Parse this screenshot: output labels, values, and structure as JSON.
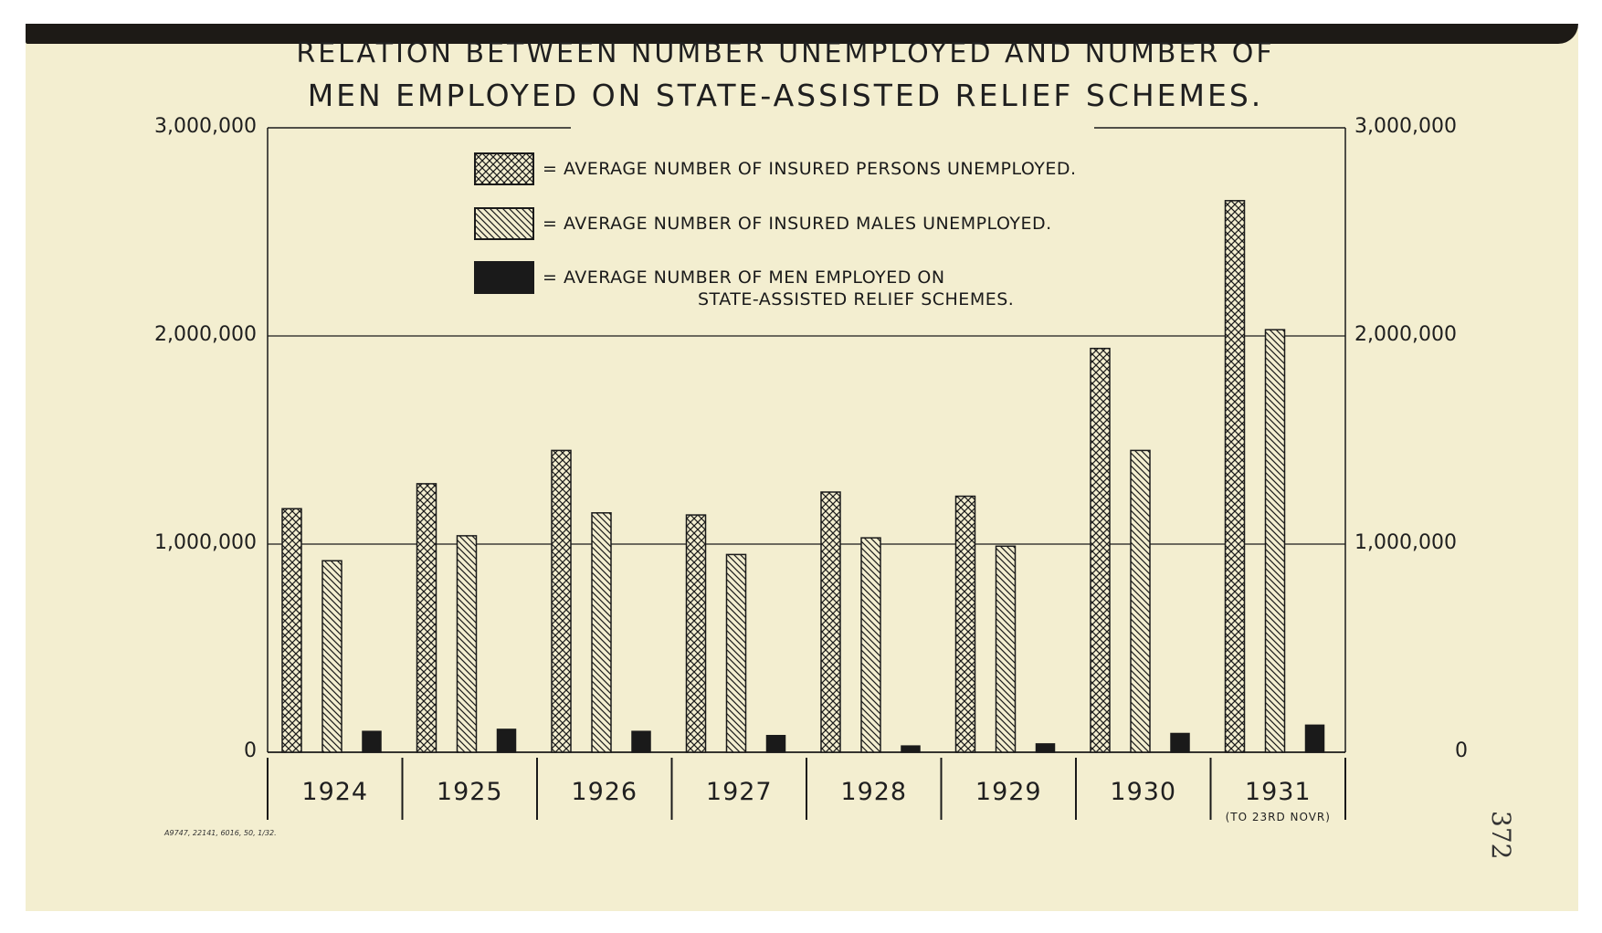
{
  "title": {
    "line1": "RELATION  BETWEEN  NUMBER  UNEMPLOYED  AND  NUMBER  OF",
    "line2": "MEN  EMPLOYED  ON  STATE-ASSISTED  RELIEF  SCHEMES."
  },
  "legend": [
    {
      "pattern": "crosshatch",
      "text": "= AVERAGE  NUMBER  OF  INSURED  PERSONS  UNEMPLOYED."
    },
    {
      "pattern": "diagonal",
      "text": "= AVERAGE  NUMBER  OF  INSURED  MALES  UNEMPLOYED."
    },
    {
      "pattern": "solid",
      "text": "= AVERAGE  NUMBER  OF  MEN  EMPLOYED  ON",
      "text2": "STATE-ASSISTED  RELIEF  SCHEMES."
    }
  ],
  "axis": {
    "left_ticks": [
      "0",
      "1,000,000",
      "2,000,000",
      "3,000,000"
    ],
    "right_ticks": [
      "0",
      "1,000,000",
      "2,000,000",
      "3,000,000"
    ]
  },
  "year_note": "(TO 23RD NOVR)",
  "print_code": "A9747, 22141, 6016, 50, 1/32.",
  "page_number": "372",
  "colors": {
    "paper": "#f3eed0",
    "ink": "#1a1a1a",
    "bar_fill": "#f3eed0"
  },
  "chart_data": {
    "type": "bar",
    "categories": [
      "1924",
      "1925",
      "1926",
      "1927",
      "1928",
      "1929",
      "1930",
      "1931"
    ],
    "series": [
      {
        "name": "AVERAGE NUMBER OF INSURED PERSONS UNEMPLOYED.",
        "pattern": "crosshatch",
        "values": [
          1170000,
          1290000,
          1450000,
          1140000,
          1250000,
          1230000,
          1940000,
          2650000
        ]
      },
      {
        "name": "AVERAGE NUMBER OF INSURED MALES UNEMPLOYED.",
        "pattern": "diagonal",
        "values": [
          920000,
          1040000,
          1150000,
          950000,
          1030000,
          990000,
          1450000,
          2030000
        ]
      },
      {
        "name": "AVERAGE NUMBER OF MEN EMPLOYED ON STATE-ASSISTED RELIEF SCHEMES.",
        "pattern": "solid",
        "values": [
          100000,
          110000,
          100000,
          80000,
          30000,
          40000,
          90000,
          130000
        ]
      }
    ],
    "ylim": [
      0,
      3000000
    ],
    "yticks": [
      0,
      1000000,
      2000000,
      3000000
    ],
    "grid": true,
    "legend_position": "top-center"
  }
}
